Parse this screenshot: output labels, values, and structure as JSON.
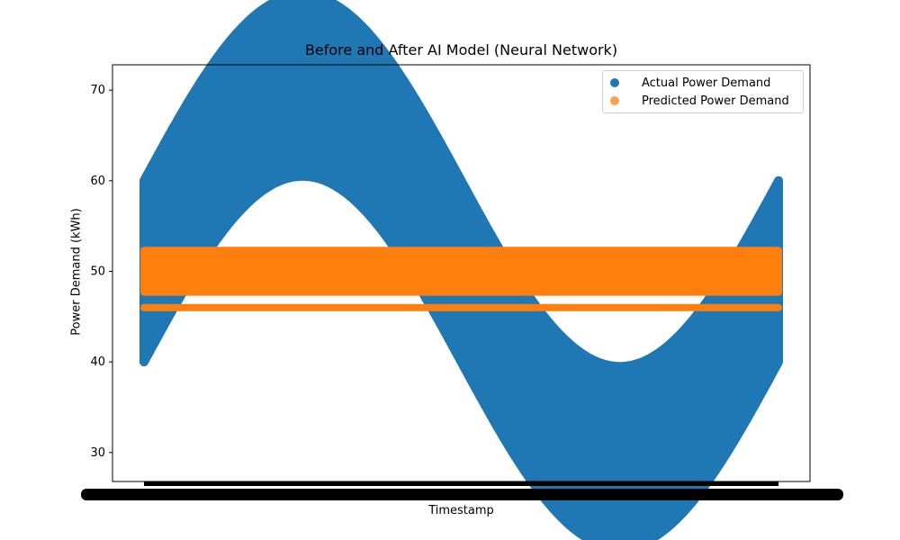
{
  "chart_data": {
    "type": "scatter",
    "title": "Before and After AI Model (Neural Network)",
    "xlabel": "Timestamp",
    "ylabel": "Power Demand (kWh)",
    "ylim": [
      26.8,
      72.8
    ],
    "yticks": [
      30,
      40,
      50,
      60,
      70
    ],
    "grid": false,
    "legend_position": "top-right",
    "series": [
      {
        "name": "Actual Power Demand",
        "color": "#1f77b4",
        "description_x_range": [
          0,
          1
        ],
        "center_sine": {
          "mean": 50,
          "amplitude": 20.5,
          "cycles": 1,
          "band_halfwidth": 10
        }
      },
      {
        "name": "Predicted Power Demand",
        "color": "#ff7f0e",
        "band": {
          "low": 47.3,
          "high": 52.7
        },
        "line": 46
      }
    ]
  }
}
